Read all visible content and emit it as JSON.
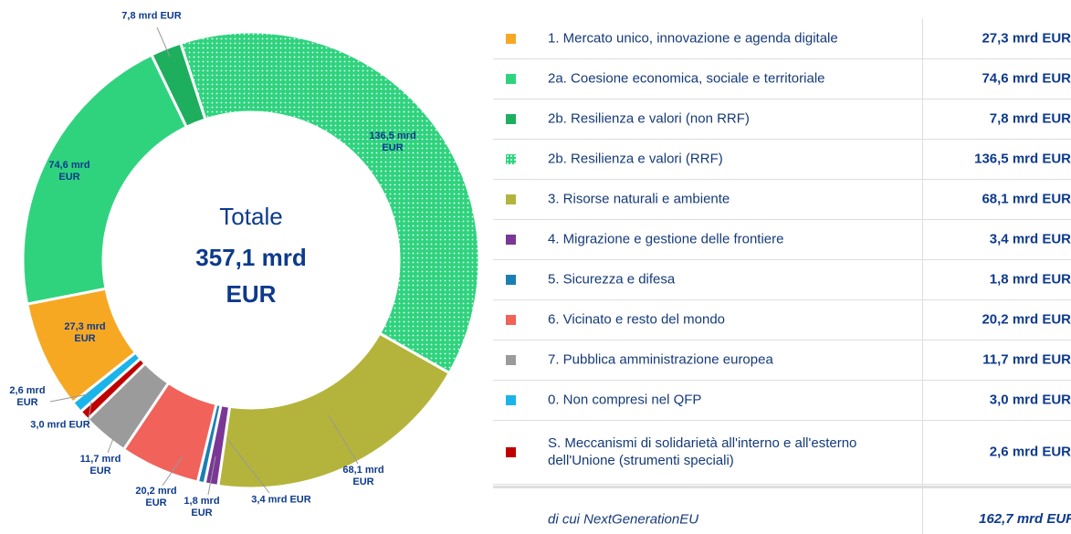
{
  "chart_data": {
    "type": "donut",
    "center_title": "Totale",
    "center_total": "357,1 mrd EUR",
    "slices": [
      {
        "name": "1. Mercato unico, innovazione e agenda digitale",
        "value": 27.3,
        "value_label": "27,3 mrd EUR",
        "color": "#f7a823"
      },
      {
        "name": "2a. Coesione economica, sociale e territoriale",
        "value": 74.6,
        "value_label": "74,6 mrd EUR",
        "color": "#2fd37e"
      },
      {
        "name": "2b. Resilienza e valori (non RRF)",
        "value": 7.8,
        "value_label": "7,8 mrd EUR",
        "color": "#1daf5e"
      },
      {
        "name": "2b. Resilienza e valori (RRF)",
        "value": 136.5,
        "value_label": "136,5 mrd EUR",
        "color": "#2fd37e",
        "pattern": "dots"
      },
      {
        "name": "3. Risorse naturali e ambiente",
        "value": 68.1,
        "value_label": "68,1 mrd EUR",
        "color": "#b4b43c"
      },
      {
        "name": "4. Migrazione e gestione delle frontiere",
        "value": 3.4,
        "value_label": "3,4 mrd EUR",
        "color": "#7a3796"
      },
      {
        "name": "5. Sicurezza e difesa",
        "value": 1.8,
        "value_label": "1,8 mrd EUR",
        "color": "#1a7fb5"
      },
      {
        "name": "6. Vicinato e resto del mondo",
        "value": 20.2,
        "value_label": "20,2 mrd EUR",
        "color": "#f0625a"
      },
      {
        "name": "7. Pubblica amministrazione europea",
        "value": 11.7,
        "value_label": "11,7 mrd EUR",
        "color": "#9b9b9b"
      },
      {
        "name": "0. Non compresi nel QFP",
        "value": 3.0,
        "value_label": "3,0 mrd EUR",
        "color": "#1ab4ea"
      },
      {
        "name": "S. Meccanismi di solidarietà all'interno e all'esterno dell'Unione (strumenti speciali)",
        "value": 2.6,
        "value_label": "2,6 mrd EUR",
        "color": "#c00000"
      }
    ],
    "footer": {
      "label": "di cui NextGenerationEU",
      "value_label": "162,7 mrd EUR"
    }
  }
}
